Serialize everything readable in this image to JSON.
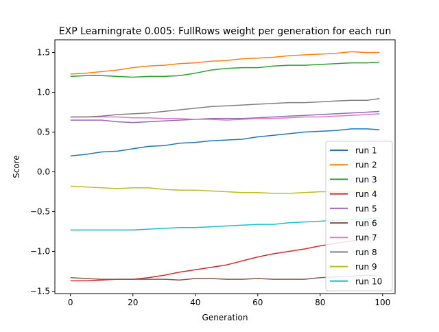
{
  "chart_data": {
    "type": "line",
    "title": "EXP Learningrate 0.005: FullRows weight per generation for each run",
    "xlabel": "Generation",
    "ylabel": "Score",
    "xlim": [
      -5,
      104
    ],
    "ylim": [
      -1.53,
      1.66
    ],
    "xticks": [
      0,
      20,
      40,
      60,
      80,
      100
    ],
    "xtick_labels": [
      "0",
      "20",
      "40",
      "60",
      "80",
      "100"
    ],
    "yticks": [
      -1.5,
      -1.0,
      -0.5,
      0.0,
      0.5,
      1.0,
      1.5
    ],
    "ytick_labels": [
      "−1.5",
      "−1.0",
      "−0.5",
      "0.0",
      "0.5",
      "1.0",
      "1.5"
    ],
    "grid": false,
    "legend_position": "lower-right",
    "x": [
      0,
      5,
      10,
      15,
      20,
      25,
      30,
      35,
      40,
      45,
      50,
      55,
      60,
      65,
      70,
      75,
      80,
      85,
      90,
      95,
      99
    ],
    "series": [
      {
        "name": "run 1",
        "color": "#1f77b4",
        "values": [
          0.2,
          0.22,
          0.25,
          0.26,
          0.29,
          0.32,
          0.33,
          0.36,
          0.37,
          0.39,
          0.4,
          0.41,
          0.44,
          0.46,
          0.48,
          0.5,
          0.51,
          0.52,
          0.54,
          0.54,
          0.53
        ]
      },
      {
        "name": "run 2",
        "color": "#ff7f0e",
        "values": [
          1.23,
          1.24,
          1.26,
          1.28,
          1.31,
          1.33,
          1.34,
          1.36,
          1.37,
          1.39,
          1.4,
          1.42,
          1.43,
          1.44,
          1.46,
          1.47,
          1.48,
          1.49,
          1.51,
          1.5,
          1.5
        ]
      },
      {
        "name": "run 3",
        "color": "#2ca02c",
        "values": [
          1.2,
          1.21,
          1.21,
          1.2,
          1.19,
          1.2,
          1.2,
          1.21,
          1.24,
          1.28,
          1.3,
          1.31,
          1.31,
          1.33,
          1.34,
          1.34,
          1.35,
          1.36,
          1.37,
          1.37,
          1.38
        ]
      },
      {
        "name": "run 4",
        "color": "#d62728",
        "values": [
          -1.37,
          -1.37,
          -1.36,
          -1.35,
          -1.35,
          -1.33,
          -1.3,
          -1.26,
          -1.23,
          -1.2,
          -1.17,
          -1.12,
          -1.07,
          -1.03,
          -1.0,
          -0.97,
          -0.93,
          -0.9,
          -0.87,
          -0.83,
          -0.82
        ]
      },
      {
        "name": "run 5",
        "color": "#9467bd",
        "values": [
          0.65,
          0.65,
          0.65,
          0.63,
          0.62,
          0.63,
          0.64,
          0.65,
          0.66,
          0.67,
          0.67,
          0.67,
          0.68,
          0.69,
          0.7,
          0.71,
          0.72,
          0.73,
          0.74,
          0.75,
          0.76
        ]
      },
      {
        "name": "run 6",
        "color": "#8c564b",
        "values": [
          -1.33,
          -1.34,
          -1.35,
          -1.35,
          -1.35,
          -1.35,
          -1.35,
          -1.36,
          -1.34,
          -1.34,
          -1.35,
          -1.35,
          -1.34,
          -1.35,
          -1.35,
          -1.35,
          -1.33,
          -1.32,
          -1.31,
          -1.3,
          -1.31
        ]
      },
      {
        "name": "run 7",
        "color": "#e377c2",
        "values": [
          0.69,
          0.69,
          0.69,
          0.69,
          0.68,
          0.68,
          0.67,
          0.67,
          0.66,
          0.66,
          0.65,
          0.66,
          0.67,
          0.67,
          0.68,
          0.69,
          0.69,
          0.7,
          0.71,
          0.72,
          0.73
        ]
      },
      {
        "name": "run 8",
        "color": "#7f7f7f",
        "values": [
          0.69,
          0.69,
          0.7,
          0.72,
          0.73,
          0.74,
          0.76,
          0.78,
          0.8,
          0.82,
          0.83,
          0.84,
          0.85,
          0.86,
          0.87,
          0.87,
          0.88,
          0.89,
          0.9,
          0.9,
          0.92
        ]
      },
      {
        "name": "run 9",
        "color": "#bcbd22",
        "values": [
          -0.18,
          -0.19,
          -0.2,
          -0.21,
          -0.2,
          -0.2,
          -0.22,
          -0.23,
          -0.23,
          -0.24,
          -0.25,
          -0.26,
          -0.26,
          -0.27,
          -0.27,
          -0.26,
          -0.25,
          -0.25,
          -0.24,
          -0.24,
          -0.24
        ]
      },
      {
        "name": "run 10",
        "color": "#17becf",
        "values": [
          -0.73,
          -0.73,
          -0.73,
          -0.73,
          -0.73,
          -0.72,
          -0.71,
          -0.7,
          -0.7,
          -0.69,
          -0.68,
          -0.67,
          -0.66,
          -0.66,
          -0.64,
          -0.63,
          -0.62,
          -0.61,
          -0.6,
          -0.59,
          -0.58
        ]
      }
    ]
  }
}
